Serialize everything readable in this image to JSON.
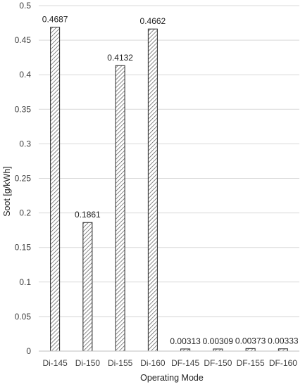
{
  "chart_data": {
    "type": "bar",
    "title": "",
    "xlabel": "Operating Mode",
    "ylabel": "Soot [g/kWh]",
    "categories": [
      "Di-145",
      "Di-150",
      "Di-155",
      "Di-160",
      "DF-145",
      "DF-150",
      "DF-155",
      "DF-160"
    ],
    "values": [
      0.4687,
      0.1861,
      0.4132,
      0.4662,
      0.00313,
      0.00309,
      0.00373,
      0.00333
    ],
    "data_labels": [
      "0.4687",
      "0.1861",
      "0.4132",
      "0.4662",
      "0.00313",
      "0.00309",
      "0.00373",
      "0.00333"
    ],
    "ylim": [
      0,
      0.5
    ],
    "yticks": [
      "0",
      "0.05",
      "0.1",
      "0.15",
      "0.2",
      "0.25",
      "0.3",
      "0.35",
      "0.4",
      "0.45",
      "0.5"
    ],
    "grid": true,
    "legend": "none",
    "bar_pattern": "diagonal-hatch",
    "colors": {
      "bar_stroke": "#262626",
      "hatch": "#555555",
      "grid": "#d9d9d9",
      "text": "#404040"
    }
  }
}
